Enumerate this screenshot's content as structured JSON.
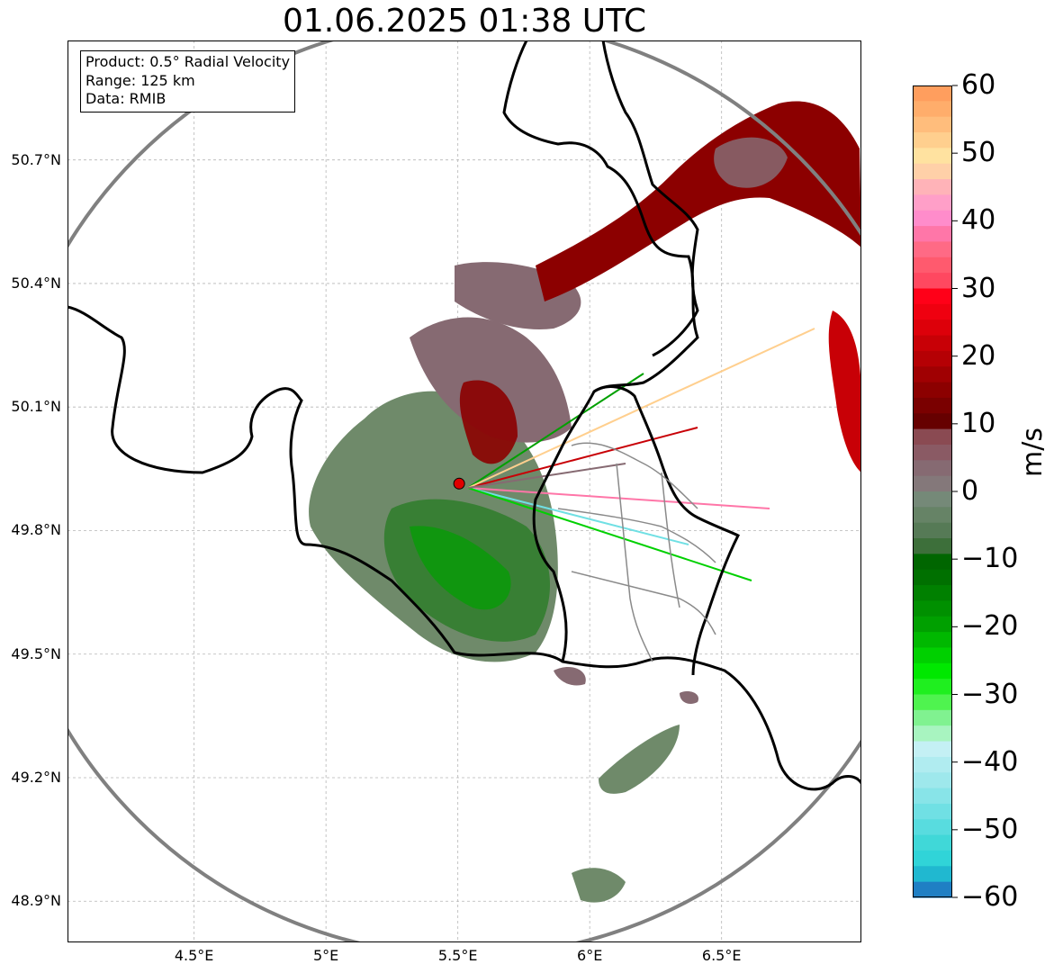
{
  "title": "01.06.2025 01:38 UTC",
  "info": {
    "product": "Product: 0.5° Radial Velocity",
    "range": "Range: 125 km",
    "source": "Data: RMIB"
  },
  "axes": {
    "lon_range": [
      4.02,
      7.03
    ],
    "lat_range": [
      48.8,
      50.99
    ],
    "lat_ticks": [
      {
        "value": 48.9,
        "label": "48.9°N"
      },
      {
        "value": 49.2,
        "label": "49.2°N"
      },
      {
        "value": 49.5,
        "label": "49.5°N"
      },
      {
        "value": 49.8,
        "label": "49.8°N"
      },
      {
        "value": 50.1,
        "label": "50.1°N"
      },
      {
        "value": 50.4,
        "label": "50.4°N"
      },
      {
        "value": 50.7,
        "label": "50.7°N"
      }
    ],
    "lon_ticks": [
      {
        "value": 4.5,
        "label": "4.5°E"
      },
      {
        "value": 5.0,
        "label": "5°E"
      },
      {
        "value": 5.5,
        "label": "5.5°E"
      },
      {
        "value": 6.0,
        "label": "6°E"
      },
      {
        "value": 6.5,
        "label": "6.5°E"
      }
    ],
    "grid": true
  },
  "radar": {
    "site_lon": 5.505,
    "site_lat": 49.914,
    "range_km": 125
  },
  "colorbar": {
    "label": "m/s",
    "min": -60,
    "max": 60,
    "ticks": [
      {
        "value": 60,
        "label": "60"
      },
      {
        "value": 50,
        "label": "50"
      },
      {
        "value": 40,
        "label": "40"
      },
      {
        "value": 30,
        "label": "30"
      },
      {
        "value": 20,
        "label": "20"
      },
      {
        "value": 10,
        "label": "10"
      },
      {
        "value": 0,
        "label": "0"
      },
      {
        "value": -10,
        "label": "−10"
      },
      {
        "value": -20,
        "label": "−20"
      },
      {
        "value": -30,
        "label": "−30"
      },
      {
        "value": -40,
        "label": "−40"
      },
      {
        "value": -50,
        "label": "−50"
      },
      {
        "value": -60,
        "label": "−60"
      }
    ],
    "colors_top_to_bottom": [
      "#ff9e5e",
      "#ffad6b",
      "#ffbd7c",
      "#ffcf8e",
      "#ffe2a0",
      "#ffd0a8",
      "#ffb3b8",
      "#ff9fc8",
      "#ff8ccb",
      "#ff76a8",
      "#ff6a85",
      "#ff5a6e",
      "#ff4860",
      "#ff0018",
      "#ef0010",
      "#dd000a",
      "#c80006",
      "#b50004",
      "#a00002",
      "#8c0000",
      "#7a0000",
      "#660000",
      "#8a4a52",
      "#8a5a64",
      "#866a72",
      "#84787a",
      "#758978",
      "#668366",
      "#567a56",
      "#3d6f3a",
      "#006600",
      "#007000",
      "#008000",
      "#009000",
      "#00a000",
      "#00b800",
      "#00d000",
      "#00e800",
      "#1fef1f",
      "#4ff34f",
      "#80f290",
      "#a8f4c0",
      "#c4f0f4",
      "#b0ecf0",
      "#9ee8ec",
      "#88e4e8",
      "#70e0e4",
      "#58dcdf",
      "#40d8d8",
      "#30d4d8",
      "#20b8d0",
      "#1f7fc4"
    ]
  },
  "site_name": "",
  "echoes": {
    "dominant_colors": [
      "#6f8a6a",
      "#866a72",
      "#8c0000",
      "#00a000",
      "#ff76a8",
      "#70e0e4"
    ]
  }
}
